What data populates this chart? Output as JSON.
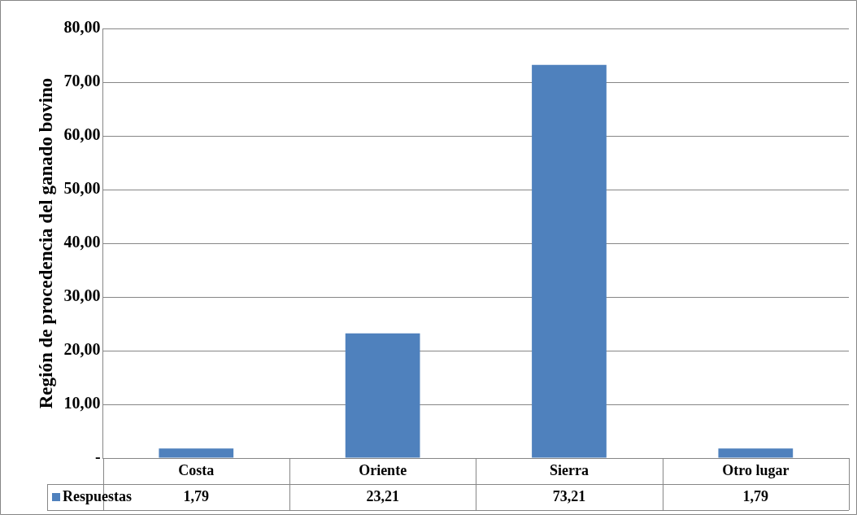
{
  "chart_data": {
    "type": "bar",
    "ylabel": "Región de procedencia del ganado bovino",
    "categories": [
      "Costa",
      "Oriente",
      "Sierra",
      "Otro lugar"
    ],
    "series": [
      {
        "name": "Respuestas",
        "color": "#4f81bd",
        "values": [
          1.79,
          23.21,
          73.21,
          1.79
        ],
        "value_labels": [
          "1,79",
          "23,21",
          "73,21",
          "1,79"
        ]
      }
    ],
    "ylim": [
      0,
      80
    ],
    "yticks": [
      {
        "value": 0,
        "label": "-"
      },
      {
        "value": 10,
        "label": "10,00"
      },
      {
        "value": 20,
        "label": "20,00"
      },
      {
        "value": 30,
        "label": "30,00"
      },
      {
        "value": 40,
        "label": "40,00"
      },
      {
        "value": 50,
        "label": "50,00"
      },
      {
        "value": 60,
        "label": "60,00"
      },
      {
        "value": 70,
        "label": "70,00"
      },
      {
        "value": 80,
        "label": "80,00"
      }
    ],
    "grid": "y",
    "legend": "bottom"
  }
}
